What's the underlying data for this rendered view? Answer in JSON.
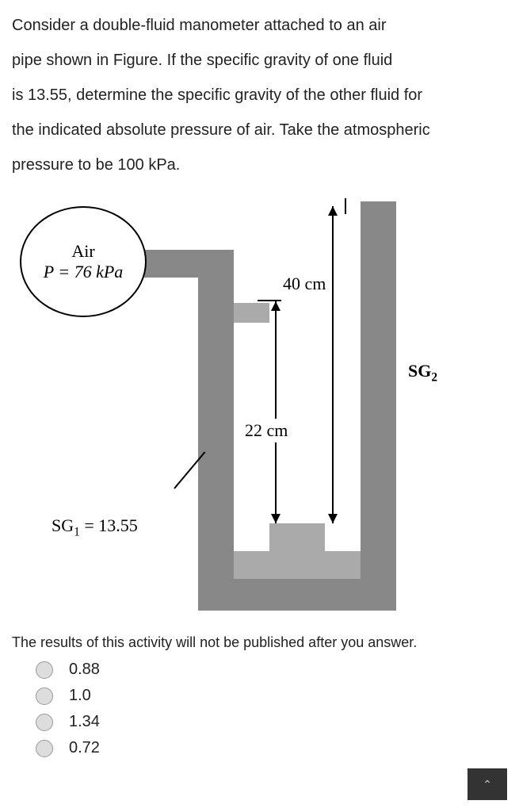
{
  "problem": {
    "line1": "Consider a double-fluid manometer attached to an air",
    "line2": "pipe shown in Figure. If the specific gravity of one fluid",
    "line3": "is 13.55, determine the specific gravity of the other fluid for",
    "line4": "the indicated absolute pressure of air. Take the atmospheric",
    "line5": "pressure to be 100 kPa."
  },
  "diagram": {
    "air_label": "Air",
    "pressure": "P = 76 kPa",
    "dim_40": "40 cm",
    "dim_22": "22 cm",
    "sg1_raw": "SG₁ = 13.55",
    "sg2_raw": "SG₂",
    "colors": {
      "pipe": "#888888",
      "fluid": "#aaaaaa",
      "background": "#ffffff",
      "line": "#000000"
    }
  },
  "results_note": "The results of this activity will not be published after you answer.",
  "options": [
    {
      "label": "0.88"
    },
    {
      "label": "1.0"
    },
    {
      "label": "1.34"
    },
    {
      "label": "0.72"
    }
  ],
  "scroll_icon": "⌃"
}
